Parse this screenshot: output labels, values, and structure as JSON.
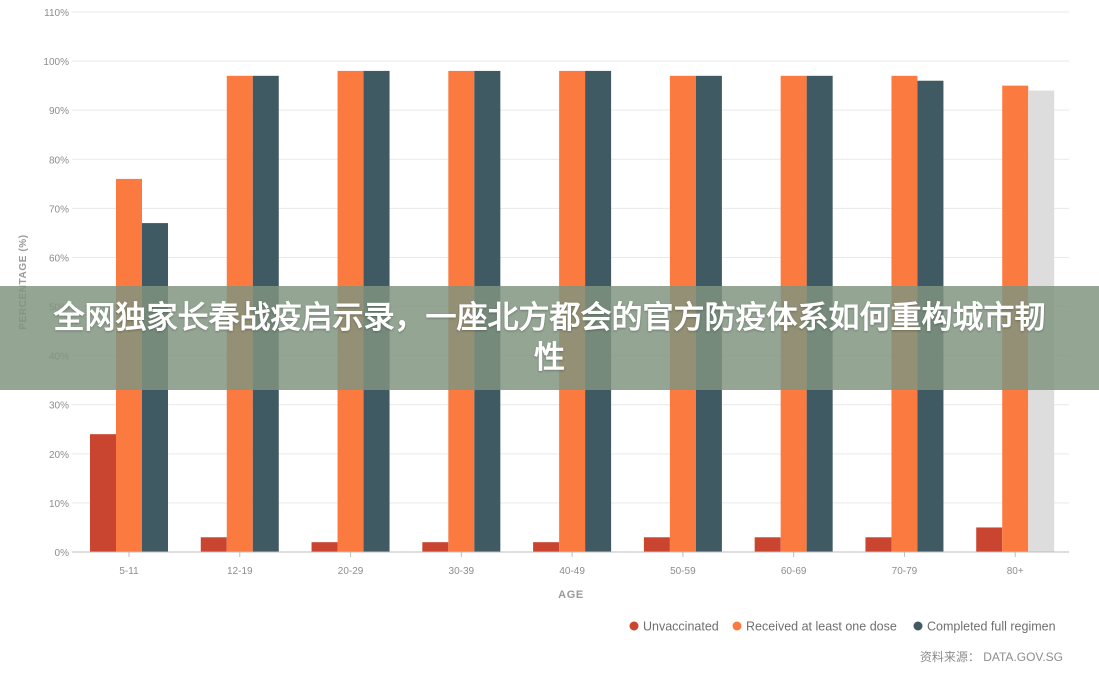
{
  "overlay": {
    "title": "全网独家长春战疫启示录，一座北方都会的官方防疫体系如何重构城市韧性"
  },
  "source": "资料来源： DATA.GOV.SG",
  "colors": {
    "unvaccinated": "#c9452f",
    "one_dose": "#fb7a40",
    "full_regimen": "#3f5a62",
    "faded": "#dddddd",
    "grid": "#e9e9e9",
    "axis_text": "#8d8d8d"
  },
  "chart_data": {
    "type": "bar",
    "title": "",
    "xlabel": "AGE",
    "ylabel": "PERCENTAGE (%)",
    "ylim": [
      0,
      110
    ],
    "yticks": [
      0,
      10,
      20,
      30,
      40,
      50,
      60,
      70,
      80,
      90,
      100,
      110
    ],
    "ytick_labels": [
      "0%",
      "10%",
      "20%",
      "30%",
      "40%",
      "50%",
      "60%",
      "70%",
      "80%",
      "90%",
      "100%",
      "110%"
    ],
    "categories": [
      "5-11",
      "12-19",
      "20-29",
      "30-39",
      "40-49",
      "50-59",
      "60-69",
      "70-79",
      "80+"
    ],
    "series": [
      {
        "name": "Unvaccinated",
        "values": [
          24,
          3,
          2,
          2,
          2,
          3,
          3,
          3,
          5
        ]
      },
      {
        "name": "Received at least one dose",
        "values": [
          76,
          97,
          98,
          98,
          98,
          97,
          97,
          97,
          95
        ]
      },
      {
        "name": "Completed full regimen",
        "values": [
          67,
          97,
          98,
          98,
          98,
          97,
          97,
          96,
          94
        ]
      }
    ],
    "legend_position": "bottom-right",
    "grid": true
  }
}
